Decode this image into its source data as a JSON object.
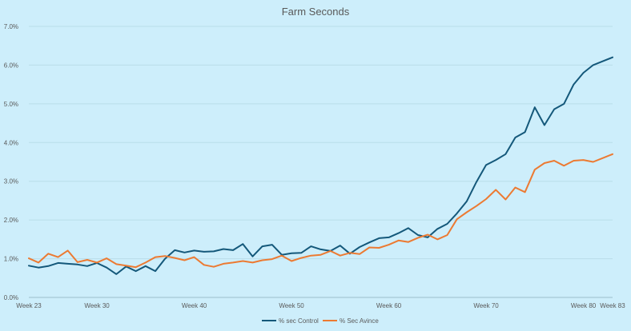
{
  "chart_data": {
    "type": "line",
    "title": "Farm Seconds",
    "xlabel": "",
    "ylabel": "",
    "ylim": [
      0,
      7
    ],
    "y_ticks": [
      "0.0%",
      "1.0%",
      "2.0%",
      "3.0%",
      "4.0%",
      "5.0%",
      "6.0%",
      "7.0%"
    ],
    "x_range": [
      23,
      83
    ],
    "x_tick_weeks": [
      23,
      30,
      40,
      50,
      60,
      70,
      80,
      83
    ],
    "x_tick_labels": [
      "Week 23",
      "Week 30",
      "Week 40",
      "Week 50",
      "Week 60",
      "Week 70",
      "Week 80",
      "Week 83"
    ],
    "grid": true,
    "legend_position": "bottom",
    "series": [
      {
        "name": "% sec Control",
        "color": "#14587a",
        "values": [
          0.82,
          0.77,
          0.81,
          0.89,
          0.87,
          0.85,
          0.81,
          0.89,
          0.77,
          0.6,
          0.8,
          0.68,
          0.81,
          0.68,
          1.0,
          1.22,
          1.16,
          1.21,
          1.18,
          1.19,
          1.25,
          1.22,
          1.38,
          1.06,
          1.32,
          1.36,
          1.1,
          1.14,
          1.15,
          1.32,
          1.24,
          1.2,
          1.34,
          1.13,
          1.3,
          1.42,
          1.53,
          1.55,
          1.66,
          1.79,
          1.61,
          1.55,
          1.77,
          1.9,
          2.17,
          2.48,
          2.98,
          3.42,
          3.55,
          3.7,
          4.13,
          4.27,
          4.91,
          4.45,
          4.86,
          5.0,
          5.5,
          5.8,
          6.0,
          6.1,
          6.2
        ]
      },
      {
        "name": "% Sec Avince",
        "color": "#ec7a32",
        "values": [
          1.01,
          0.9,
          1.13,
          1.04,
          1.21,
          0.91,
          0.97,
          0.9,
          1.01,
          0.86,
          0.82,
          0.78,
          0.9,
          1.04,
          1.07,
          1.02,
          0.96,
          1.04,
          0.84,
          0.79,
          0.87,
          0.9,
          0.94,
          0.9,
          0.96,
          0.99,
          1.08,
          0.94,
          1.02,
          1.08,
          1.1,
          1.2,
          1.08,
          1.15,
          1.12,
          1.29,
          1.28,
          1.36,
          1.47,
          1.43,
          1.54,
          1.62,
          1.5,
          1.61,
          2.02,
          2.2,
          2.36,
          2.54,
          2.78,
          2.53,
          2.84,
          2.72,
          3.3,
          3.47,
          3.53,
          3.4,
          3.53,
          3.55,
          3.5,
          3.6,
          3.7
        ]
      }
    ]
  }
}
